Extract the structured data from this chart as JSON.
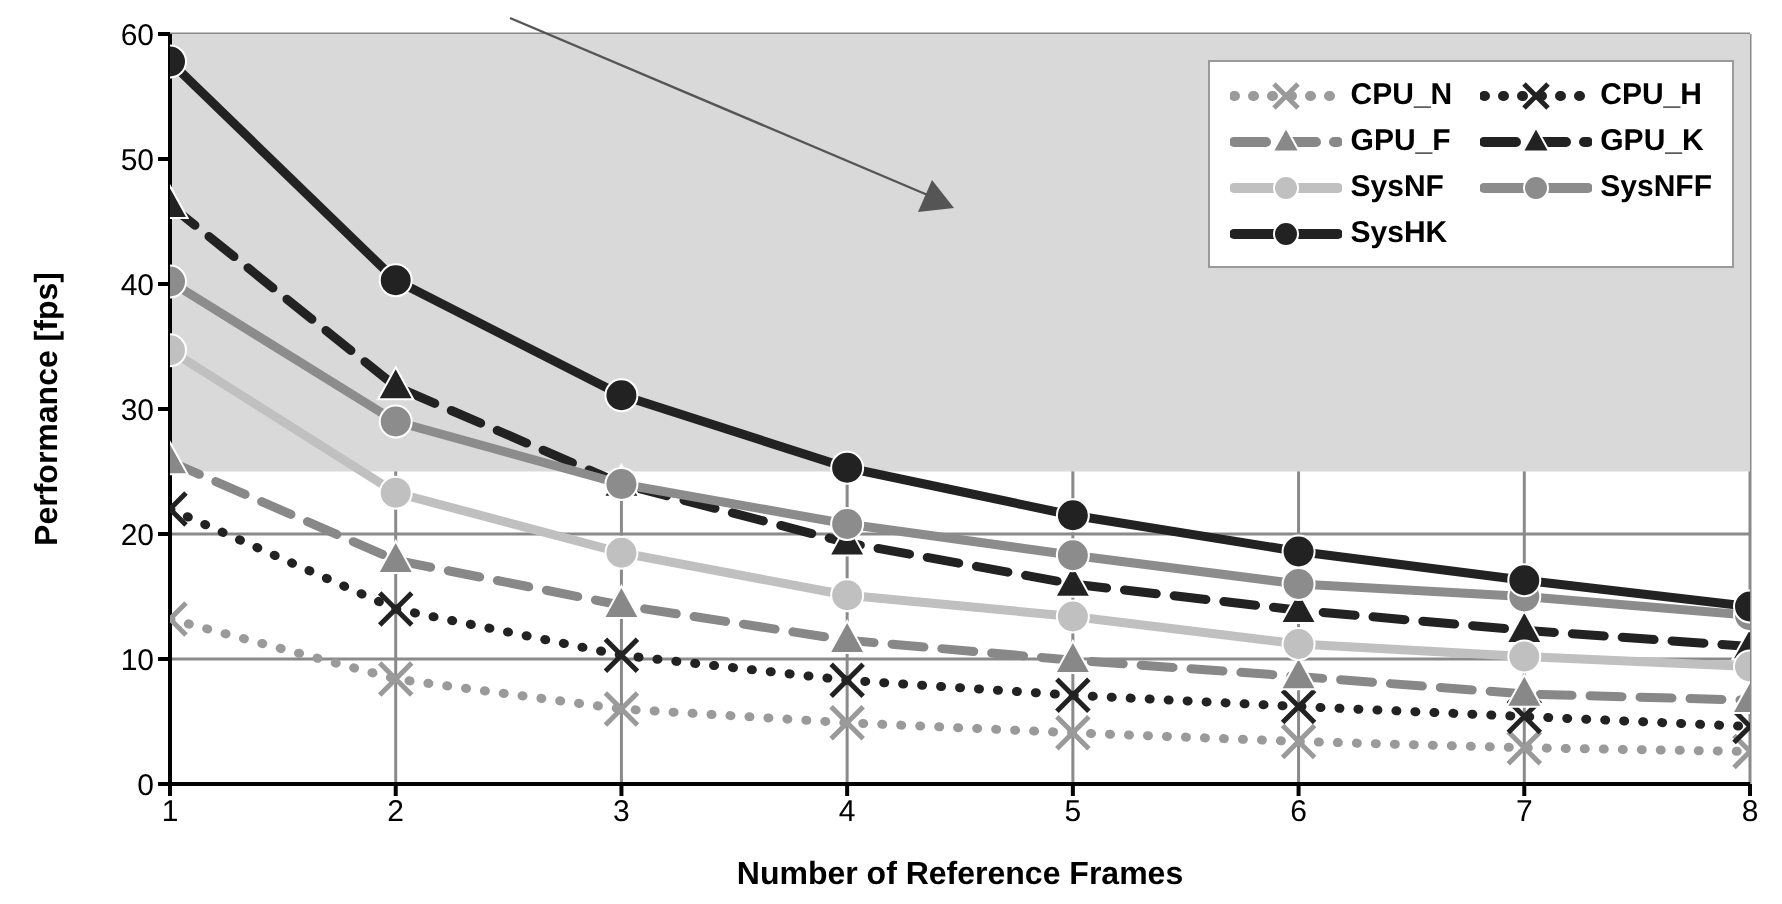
{
  "chart_data": {
    "type": "line",
    "xlabel": "Number of Reference Frames",
    "ylabel": "Performance [fps]",
    "x": [
      1,
      2,
      3,
      4,
      5,
      6,
      7,
      8
    ],
    "xlim": [
      1,
      8
    ],
    "xticks": [
      1,
      2,
      3,
      4,
      5,
      6,
      7,
      8
    ],
    "ylim": [
      0,
      60
    ],
    "yticks": [
      0,
      10,
      20,
      30,
      40,
      50,
      60
    ],
    "grid": true,
    "legend": "top right",
    "bands": [
      {
        "axis": "y",
        "from": 25,
        "to": 60,
        "color": "#d9d9d9"
      }
    ],
    "series": [
      {
        "name": "CPU_N",
        "color": "#9a9a9a",
        "marker": "cross",
        "line_style": "dotted",
        "values": [
          13.2,
          8.4,
          6.0,
          4.9,
          4.1,
          3.4,
          2.9,
          2.6
        ]
      },
      {
        "name": "CPU_H",
        "color": "#222222",
        "marker": "cross",
        "line_style": "dotted",
        "values": [
          22.0,
          14.0,
          10.3,
          8.3,
          7.1,
          6.2,
          5.4,
          4.6
        ]
      },
      {
        "name": "GPU_F",
        "color": "#888888",
        "marker": "triangle",
        "line_style": "dashed",
        "values": [
          25.8,
          17.9,
          14.3,
          11.5,
          9.9,
          8.6,
          7.2,
          6.7
        ]
      },
      {
        "name": "GPU_K",
        "color": "#222222",
        "marker": "triangle",
        "line_style": "dashed",
        "values": [
          46.3,
          31.8,
          24.0,
          19.3,
          16.0,
          13.9,
          12.3,
          11.0
        ]
      },
      {
        "name": "SysNF",
        "color": "#c0c0c0",
        "marker": "circle",
        "line_style": "solid",
        "values": [
          34.7,
          23.3,
          18.5,
          15.1,
          13.4,
          11.2,
          10.2,
          9.4
        ]
      },
      {
        "name": "SysNFF",
        "color": "#8c8c8c",
        "marker": "circle",
        "line_style": "solid",
        "values": [
          40.2,
          29.0,
          24.0,
          20.8,
          18.3,
          16.0,
          15.0,
          13.5
        ]
      },
      {
        "name": "SysHK",
        "color": "#222222",
        "marker": "circle",
        "line_style": "solid",
        "values": [
          57.8,
          40.3,
          31.1,
          25.3,
          21.5,
          18.6,
          16.3,
          14.2
        ]
      }
    ]
  }
}
